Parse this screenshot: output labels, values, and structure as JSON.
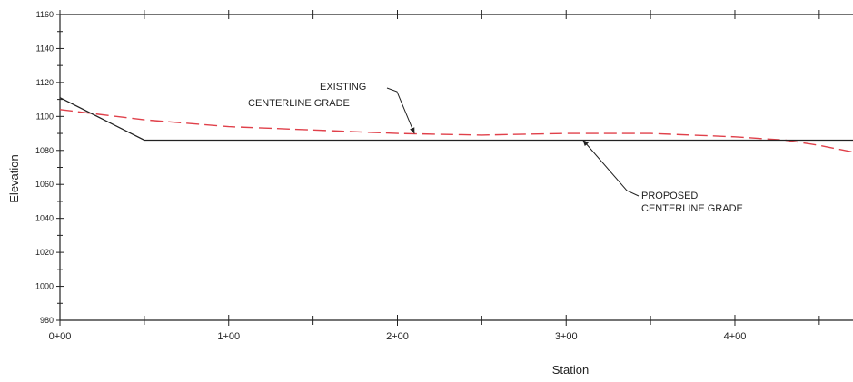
{
  "chart_data": {
    "type": "line",
    "title": "",
    "xlabel": "Station",
    "ylabel": "Elevation",
    "xlim": [
      0,
      470
    ],
    "ylim": [
      980,
      1160
    ],
    "x_ticks": [
      {
        "value": 0,
        "label": "0+00"
      },
      {
        "value": 100,
        "label": "1+00"
      },
      {
        "value": 200,
        "label": "2+00"
      },
      {
        "value": 300,
        "label": "3+00"
      },
      {
        "value": 400,
        "label": "4+00"
      }
    ],
    "x_minor_ticks": [
      50,
      150,
      250,
      350,
      450
    ],
    "y_ticks": [
      {
        "value": 980,
        "label": "980"
      },
      {
        "value": 1000,
        "label": "1000"
      },
      {
        "value": 1020,
        "label": "1020"
      },
      {
        "value": 1040,
        "label": "1040"
      },
      {
        "value": 1060,
        "label": "1060"
      },
      {
        "value": 1080,
        "label": "1080"
      },
      {
        "value": 1100,
        "label": "1100"
      },
      {
        "value": 1120,
        "label": "1120"
      },
      {
        "value": 1140,
        "label": "1140"
      },
      {
        "value": 1160,
        "label": "1160"
      }
    ],
    "grid": false,
    "series": [
      {
        "name": "EXISTING CENTERLINE GRADE",
        "style": "dashed",
        "color": "#e0404a",
        "points": [
          {
            "x": 0,
            "y": 1104
          },
          {
            "x": 50,
            "y": 1098
          },
          {
            "x": 100,
            "y": 1094
          },
          {
            "x": 150,
            "y": 1092
          },
          {
            "x": 200,
            "y": 1090
          },
          {
            "x": 250,
            "y": 1089
          },
          {
            "x": 300,
            "y": 1090
          },
          {
            "x": 350,
            "y": 1090
          },
          {
            "x": 400,
            "y": 1088
          },
          {
            "x": 430,
            "y": 1086
          },
          {
            "x": 450,
            "y": 1083
          },
          {
            "x": 470,
            "y": 1079
          }
        ]
      },
      {
        "name": "PROPOSED CENTERLINE GRADE",
        "style": "solid",
        "color": "#222222",
        "points": [
          {
            "x": 0,
            "y": 1111
          },
          {
            "x": 50,
            "y": 1086
          },
          {
            "x": 470,
            "y": 1086
          }
        ]
      }
    ],
    "annotations": [
      {
        "name": "existing",
        "lines": [
          "EXISTING",
          "CENTERLINE GRADE"
        ],
        "arrow_target": {
          "x": 210,
          "y": 1090
        }
      },
      {
        "name": "proposed",
        "lines": [
          "PROPOSED",
          "CENTERLINE GRADE"
        ],
        "arrow_target": {
          "x": 310,
          "y": 1086
        }
      }
    ]
  }
}
